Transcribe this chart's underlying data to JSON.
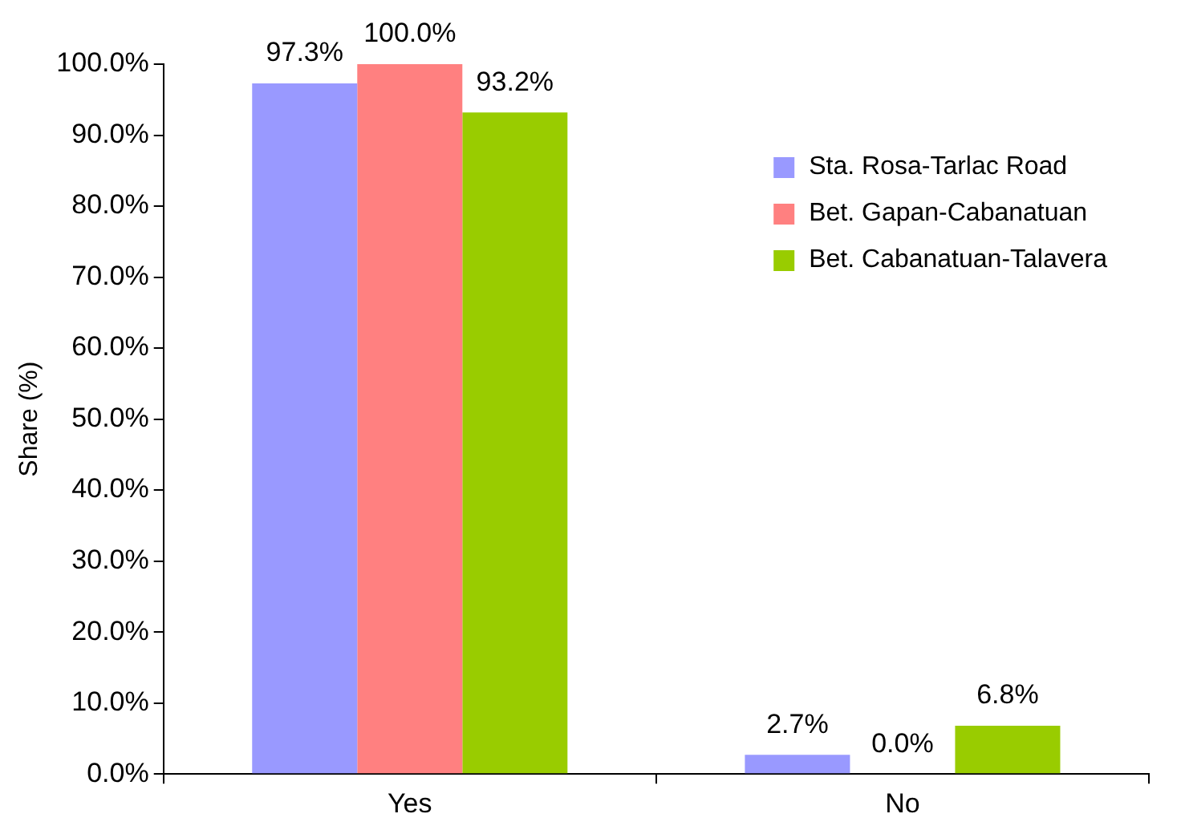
{
  "chart_data": {
    "type": "bar",
    "ylabel": "Share (%)",
    "categories": [
      "Yes",
      "No"
    ],
    "series": [
      {
        "name": "Sta. Rosa-Tarlac Road",
        "color": "#9999ff",
        "values": [
          97.3,
          2.7
        ],
        "value_labels": [
          "97.3%",
          "2.7%"
        ]
      },
      {
        "name": "Bet. Gapan-Cabanatuan",
        "color": "#ff8080",
        "values": [
          100.0,
          0.0
        ],
        "value_labels": [
          "100.0%",
          "0.0%"
        ]
      },
      {
        "name": "Bet. Cabanatuan-Talavera",
        "color": "#99cc00",
        "values": [
          93.2,
          6.8
        ],
        "value_labels": [
          "93.2%",
          "6.8%"
        ]
      }
    ],
    "ylim": [
      0,
      100
    ],
    "yticks": [
      {
        "value": 0,
        "label": "0.0%"
      },
      {
        "value": 10,
        "label": "10.0%"
      },
      {
        "value": 20,
        "label": "20.0%"
      },
      {
        "value": 30,
        "label": "30.0%"
      },
      {
        "value": 40,
        "label": "40.0%"
      },
      {
        "value": 50,
        "label": "50.0%"
      },
      {
        "value": 60,
        "label": "60.0%"
      },
      {
        "value": 70,
        "label": "70.0%"
      },
      {
        "value": 80,
        "label": "80.0%"
      },
      {
        "value": 90,
        "label": "90.0%"
      },
      {
        "value": 100,
        "label": "100.0%"
      }
    ],
    "grid": false,
    "legend": "top right"
  }
}
